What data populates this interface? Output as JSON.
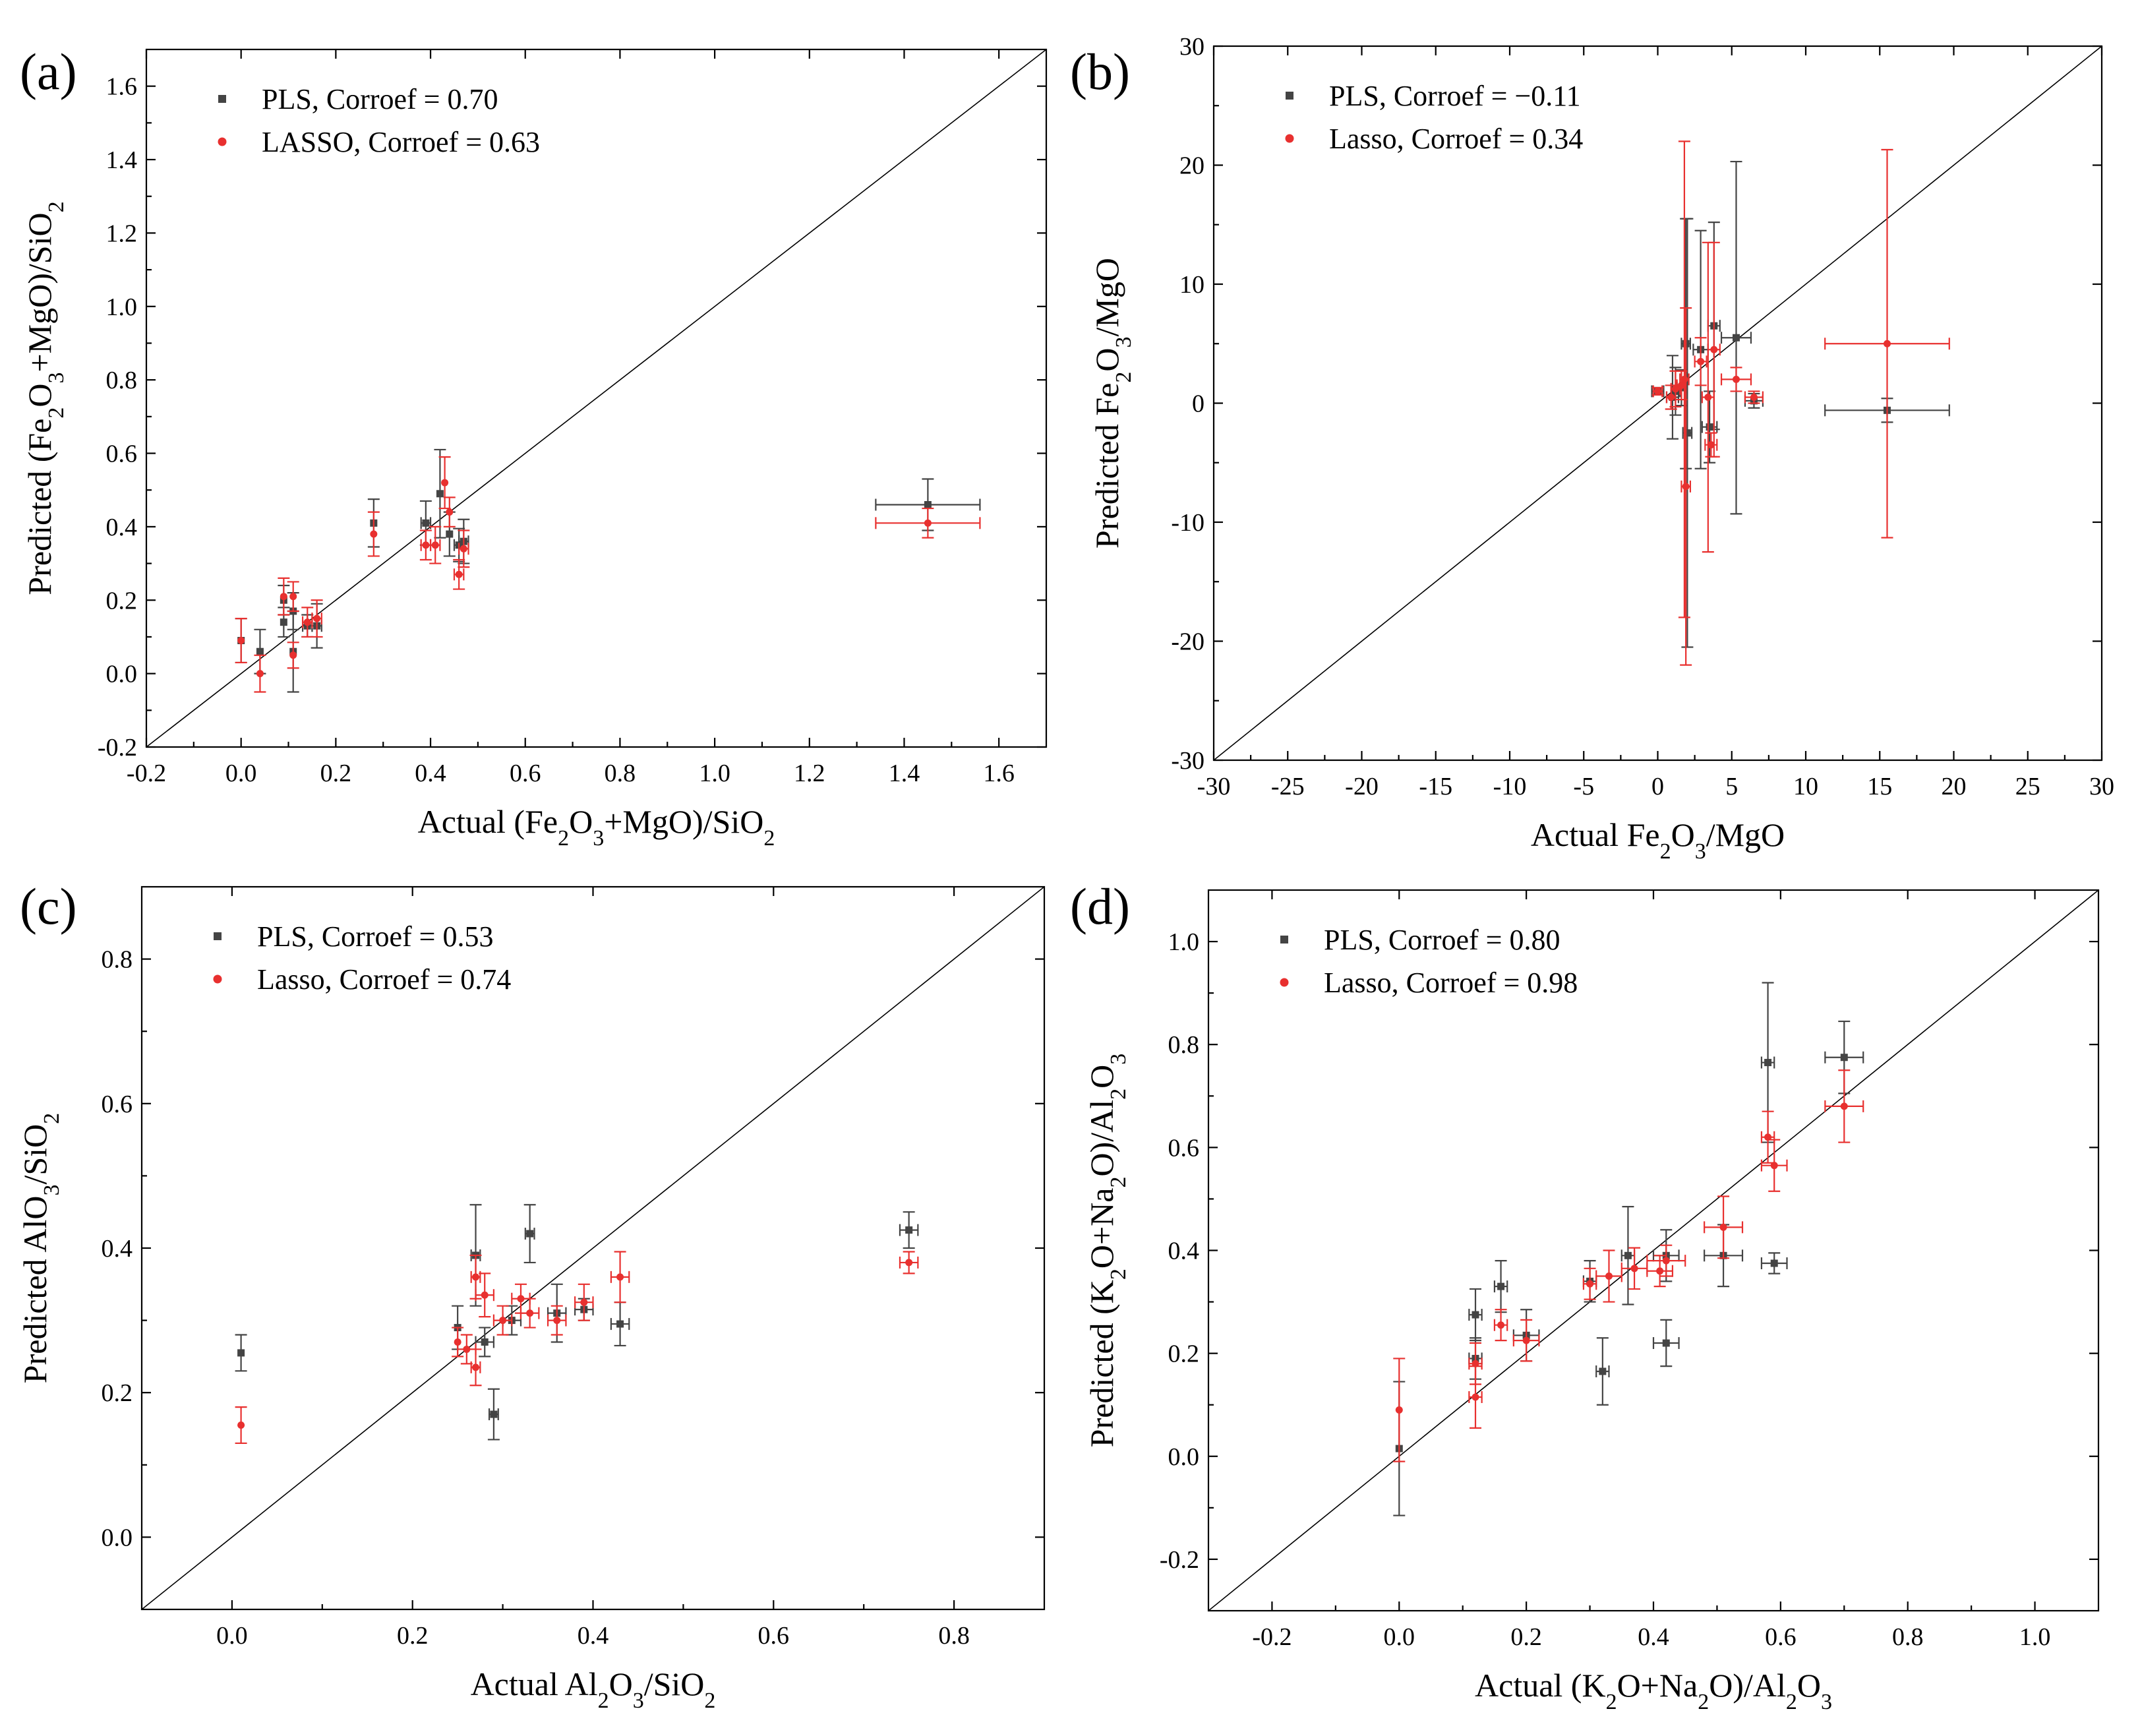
{
  "colors": {
    "pls": "#444444",
    "lasso": "#e8302f"
  },
  "chart_data": [
    {
      "id": "a",
      "type": "scatter",
      "panel_label": "(a)",
      "xlabel_html": "Actual (Fe<tspan baseline-shift='sub' font-size='34'>2</tspan>O<tspan baseline-shift='sub' font-size='34'>3</tspan>+MgO)/SiO<tspan baseline-shift='sub' font-size='34'>2</tspan>",
      "ylabel_html": "Predicted (Fe<tspan baseline-shift='sub' font-size='34'>2</tspan>O<tspan baseline-shift='sub' font-size='34'>3</tspan>+MgO)/SiO<tspan baseline-shift='sub' font-size='34'>2</tspan>",
      "xlim": [
        -0.2,
        1.7
      ],
      "ylim": [
        -0.2,
        1.7
      ],
      "xticks": [
        -0.2,
        0.0,
        0.2,
        0.4,
        0.6,
        0.8,
        1.0,
        1.2,
        1.4,
        1.6
      ],
      "yticks": [
        -0.2,
        0.0,
        0.2,
        0.4,
        0.6,
        0.8,
        1.0,
        1.2,
        1.4,
        1.6
      ],
      "tick_decimals": 1,
      "legend": [
        "PLS, Corroef = 0.70",
        "LASSO, Corroef = 0.63"
      ],
      "series": [
        {
          "name": "PLS",
          "color_key": "pls",
          "marker": "square",
          "points": [
            [
              0.0,
              0.09,
              0.0,
              0.06
            ],
            [
              0.04,
              0.06,
              0.0,
              0.06
            ],
            [
              0.09,
              0.14,
              0.0,
              0.04
            ],
            [
              0.09,
              0.2,
              0.0,
              0.04
            ],
            [
              0.11,
              0.17,
              0.0,
              0.05
            ],
            [
              0.11,
              0.06,
              0.0,
              0.11
            ],
            [
              0.14,
              0.13,
              0.01,
              0.03
            ],
            [
              0.16,
              0.13,
              0.01,
              0.06
            ],
            [
              0.28,
              0.41,
              0.0,
              0.065
            ],
            [
              0.39,
              0.41,
              0.01,
              0.06
            ],
            [
              0.42,
              0.49,
              0.0,
              0.12
            ],
            [
              0.44,
              0.38,
              0.0,
              0.06
            ],
            [
              0.46,
              0.35,
              0.01,
              0.045
            ],
            [
              0.47,
              0.36,
              0.01,
              0.06
            ],
            [
              1.45,
              0.46,
              0.11,
              0.07
            ]
          ]
        },
        {
          "name": "LASSO",
          "color_key": "lasso",
          "marker": "circle",
          "points": [
            [
              0.0,
              0.09,
              0.0,
              0.06
            ],
            [
              0.04,
              0.0,
              0.0,
              0.05
            ],
            [
              0.09,
              0.21,
              0.0,
              0.05
            ],
            [
              0.11,
              0.21,
              0.0,
              0.04
            ],
            [
              0.11,
              0.05,
              0.0,
              0.035
            ],
            [
              0.14,
              0.14,
              0.01,
              0.04
            ],
            [
              0.16,
              0.15,
              0.01,
              0.05
            ],
            [
              0.28,
              0.38,
              0.0,
              0.06
            ],
            [
              0.39,
              0.35,
              0.01,
              0.04
            ],
            [
              0.41,
              0.35,
              0.01,
              0.05
            ],
            [
              0.43,
              0.52,
              0.0,
              0.07
            ],
            [
              0.44,
              0.44,
              0.0,
              0.04
            ],
            [
              0.46,
              0.27,
              0.01,
              0.04
            ],
            [
              0.47,
              0.34,
              0.01,
              0.05
            ],
            [
              1.45,
              0.41,
              0.11,
              0.04
            ]
          ]
        }
      ]
    },
    {
      "id": "b",
      "type": "scatter",
      "panel_label": "(b)",
      "xlabel_html": "Actual Fe<tspan baseline-shift='sub' font-size='34'>2</tspan>O<tspan baseline-shift='sub' font-size='34'>3</tspan>/MgO",
      "ylabel_html": "Predicted Fe<tspan baseline-shift='sub' font-size='34'>2</tspan>O<tspan baseline-shift='sub' font-size='34'>3</tspan>/MgO",
      "xlim": [
        -30,
        30
      ],
      "ylim": [
        -30,
        30
      ],
      "xticks": [
        -30,
        -25,
        -20,
        -15,
        -10,
        -5,
        0,
        5,
        10,
        15,
        20,
        25,
        30
      ],
      "yticks": [
        -30,
        -20,
        -10,
        0,
        10,
        20,
        30
      ],
      "tick_decimals": 0,
      "legend": [
        "PLS, Corroef = −0.11",
        "Lasso, Corroef = 0.34"
      ],
      "series": [
        {
          "name": "PLS",
          "color_key": "pls",
          "marker": "square",
          "points": [
            [
              0.0,
              1.0,
              0.4,
              0.3
            ],
            [
              1.0,
              0.5,
              0.4,
              3.5
            ],
            [
              1.2,
              1.0,
              0.3,
              2.0
            ],
            [
              1.6,
              1.3,
              0.3,
              1.5
            ],
            [
              1.9,
              5.0,
              0.3,
              10.5
            ],
            [
              2.0,
              -2.5,
              0.3,
              18.0
            ],
            [
              2.9,
              4.5,
              0.5,
              10.0
            ],
            [
              3.5,
              -2.0,
              0.5,
              3.0
            ],
            [
              3.8,
              6.5,
              0.4,
              8.7
            ],
            [
              5.3,
              5.5,
              1.0,
              14.8
            ],
            [
              6.5,
              0.2,
              0.6,
              0.6
            ],
            [
              15.5,
              -0.6,
              4.2,
              1.0
            ]
          ]
        },
        {
          "name": "Lasso",
          "color_key": "lasso",
          "marker": "circle",
          "points": [
            [
              0.0,
              1.0,
              0.3,
              0.3
            ],
            [
              0.9,
              0.5,
              0.3,
              1.0
            ],
            [
              1.2,
              1.2,
              0.3,
              1.5
            ],
            [
              1.6,
              1.5,
              0.3,
              1.2
            ],
            [
              1.8,
              2.0,
              0.3,
              20.0
            ],
            [
              1.9,
              -7.0,
              0.3,
              15.0
            ],
            [
              2.9,
              3.5,
              0.4,
              2.0
            ],
            [
              3.4,
              0.5,
              0.4,
              13.0
            ],
            [
              3.6,
              -3.5,
              0.4,
              1.0
            ],
            [
              3.8,
              4.5,
              0.4,
              9.0
            ],
            [
              5.3,
              2.0,
              1.0,
              1.0
            ],
            [
              6.5,
              0.5,
              0.6,
              0.5
            ],
            [
              15.5,
              5.0,
              4.2,
              16.3
            ]
          ]
        }
      ]
    },
    {
      "id": "c",
      "type": "scatter",
      "panel_label": "(c)",
      "xlabel_html": "Actual Al<tspan baseline-shift='sub' font-size='34'>2</tspan>O<tspan baseline-shift='sub' font-size='34'>3</tspan>/SiO<tspan baseline-shift='sub' font-size='34'>2</tspan>",
      "ylabel_html": "Predicted AlO<tspan baseline-shift='sub' font-size='34'>3</tspan>/SiO<tspan baseline-shift='sub' font-size='34'>2</tspan>",
      "xlim": [
        -0.1,
        0.9
      ],
      "ylim": [
        -0.1,
        0.9
      ],
      "xticks": [
        0.0,
        0.2,
        0.4,
        0.6,
        0.8
      ],
      "yticks": [
        0.0,
        0.2,
        0.4,
        0.6,
        0.8
      ],
      "tick_decimals": 1,
      "legend": [
        "PLS, Corroef = 0.53",
        "Lasso, Corroef = 0.74"
      ],
      "series": [
        {
          "name": "PLS",
          "color_key": "pls",
          "marker": "square",
          "points": [
            [
              0.01,
              0.255,
              0.0,
              0.025
            ],
            [
              0.25,
              0.29,
              0.0,
              0.03
            ],
            [
              0.27,
              0.39,
              0.005,
              0.07
            ],
            [
              0.28,
              0.27,
              0.01,
              0.02
            ],
            [
              0.29,
              0.17,
              0.005,
              0.035
            ],
            [
              0.31,
              0.3,
              0.01,
              0.02
            ],
            [
              0.33,
              0.42,
              0.005,
              0.04
            ],
            [
              0.36,
              0.31,
              0.01,
              0.04
            ],
            [
              0.39,
              0.315,
              0.01,
              0.015
            ],
            [
              0.43,
              0.295,
              0.01,
              0.03
            ],
            [
              0.75,
              0.425,
              0.01,
              0.025
            ]
          ]
        },
        {
          "name": "Lasso",
          "color_key": "lasso",
          "marker": "circle",
          "points": [
            [
              0.01,
              0.155,
              0.0,
              0.025
            ],
            [
              0.25,
              0.27,
              0.0,
              0.02
            ],
            [
              0.26,
              0.26,
              0.01,
              0.02
            ],
            [
              0.27,
              0.36,
              0.005,
              0.03
            ],
            [
              0.27,
              0.235,
              0.005,
              0.025
            ],
            [
              0.28,
              0.335,
              0.01,
              0.03
            ],
            [
              0.3,
              0.3,
              0.01,
              0.02
            ],
            [
              0.32,
              0.33,
              0.01,
              0.02
            ],
            [
              0.33,
              0.31,
              0.01,
              0.02
            ],
            [
              0.36,
              0.3,
              0.01,
              0.02
            ],
            [
              0.39,
              0.325,
              0.01,
              0.025
            ],
            [
              0.43,
              0.36,
              0.01,
              0.035
            ],
            [
              0.75,
              0.38,
              0.01,
              0.015
            ]
          ]
        }
      ]
    },
    {
      "id": "d",
      "type": "scatter",
      "panel_label": "(d)",
      "xlabel_html": "Actual (K<tspan baseline-shift='sub' font-size='34'>2</tspan>O+Na<tspan baseline-shift='sub' font-size='34'>2</tspan>O)/Al<tspan baseline-shift='sub' font-size='34'>2</tspan>O<tspan baseline-shift='sub' font-size='34'>3</tspan>",
      "ylabel_html": "Predicted (K<tspan baseline-shift='sub' font-size='34'>2</tspan>O+Na<tspan baseline-shift='sub' font-size='34'>2</tspan>O)/Al<tspan baseline-shift='sub' font-size='34'>2</tspan>O<tspan baseline-shift='sub' font-size='34'>3</tspan>",
      "xlim": [
        -0.3,
        1.1
      ],
      "ylim": [
        -0.3,
        1.1
      ],
      "xticks": [
        -0.2,
        0.0,
        0.2,
        0.4,
        0.6,
        0.8,
        1.0
      ],
      "yticks": [
        -0.2,
        0.0,
        0.2,
        0.4,
        0.6,
        0.8,
        1.0
      ],
      "tick_decimals": 1,
      "legend": [
        "PLS, Corroef = 0.80",
        "Lasso, Corroef = 0.98"
      ],
      "series": [
        {
          "name": "PLS",
          "color_key": "pls",
          "marker": "square",
          "points": [
            [
              0.0,
              0.015,
              0.0,
              0.13
            ],
            [
              0.12,
              0.275,
              0.01,
              0.05
            ],
            [
              0.12,
              0.19,
              0.01,
              0.04
            ],
            [
              0.16,
              0.33,
              0.01,
              0.05
            ],
            [
              0.2,
              0.235,
              0.02,
              0.05
            ],
            [
              0.3,
              0.34,
              0.01,
              0.04
            ],
            [
              0.32,
              0.165,
              0.01,
              0.065
            ],
            [
              0.36,
              0.39,
              0.01,
              0.095
            ],
            [
              0.42,
              0.22,
              0.02,
              0.045
            ],
            [
              0.42,
              0.39,
              0.02,
              0.05
            ],
            [
              0.51,
              0.39,
              0.03,
              0.06
            ],
            [
              0.58,
              0.765,
              0.01,
              0.155
            ],
            [
              0.59,
              0.375,
              0.02,
              0.02
            ],
            [
              0.7,
              0.775,
              0.03,
              0.07
            ]
          ]
        },
        {
          "name": "Lasso",
          "color_key": "lasso",
          "marker": "circle",
          "points": [
            [
              0.0,
              0.09,
              0.0,
              0.1
            ],
            [
              0.12,
              0.115,
              0.01,
              0.06
            ],
            [
              0.12,
              0.18,
              0.01,
              0.04
            ],
            [
              0.16,
              0.255,
              0.01,
              0.03
            ],
            [
              0.2,
              0.225,
              0.02,
              0.04
            ],
            [
              0.3,
              0.335,
              0.01,
              0.03
            ],
            [
              0.33,
              0.35,
              0.02,
              0.05
            ],
            [
              0.37,
              0.365,
              0.02,
              0.04
            ],
            [
              0.41,
              0.36,
              0.02,
              0.03
            ],
            [
              0.42,
              0.38,
              0.03,
              0.03
            ],
            [
              0.51,
              0.445,
              0.03,
              0.06
            ],
            [
              0.58,
              0.62,
              0.01,
              0.05
            ],
            [
              0.59,
              0.565,
              0.02,
              0.05
            ],
            [
              0.7,
              0.68,
              0.03,
              0.07
            ]
          ]
        }
      ]
    }
  ]
}
